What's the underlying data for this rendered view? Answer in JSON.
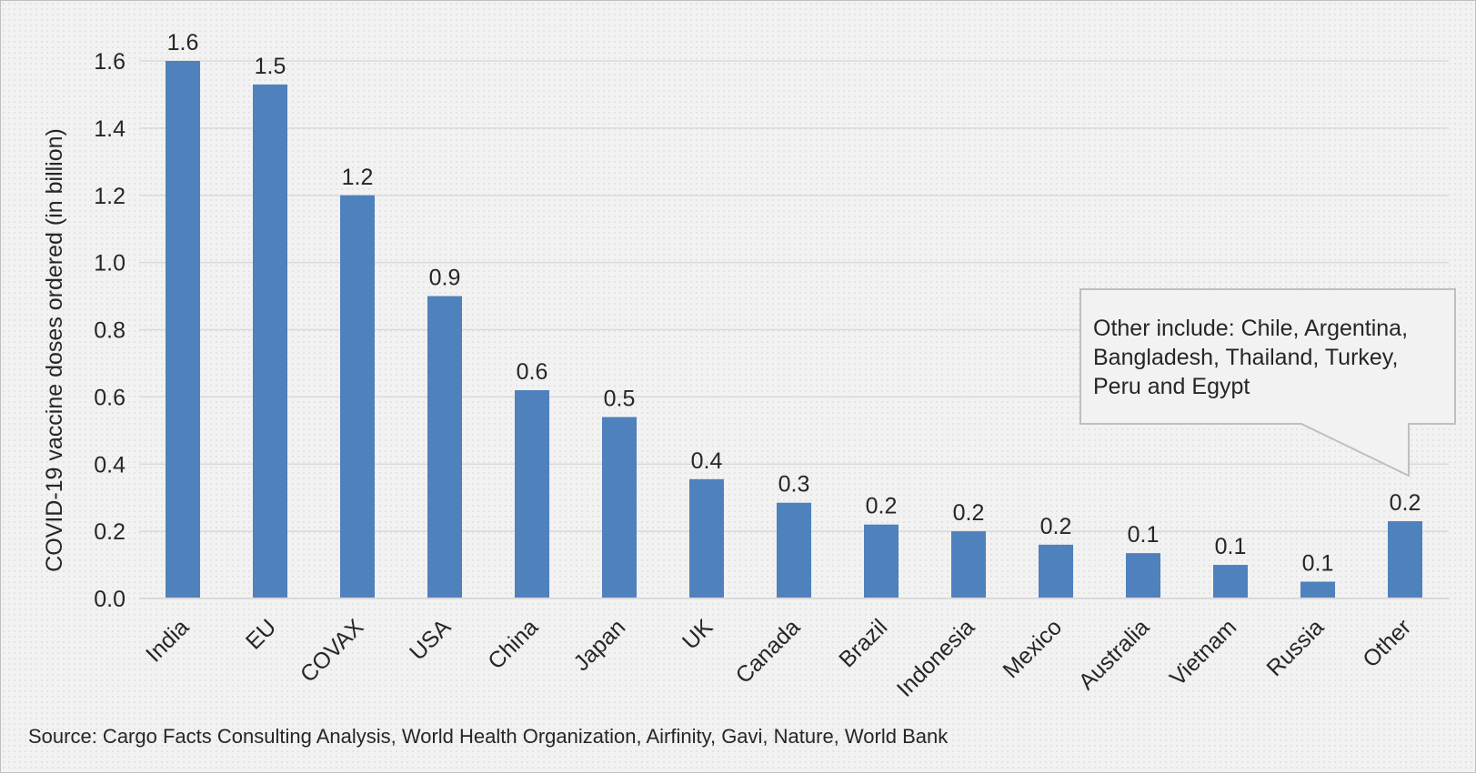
{
  "chart_data": {
    "type": "bar",
    "title": "",
    "xlabel": "",
    "ylabel": "COVID-19 vaccine doses ordered (in billion)",
    "ylim": [
      0,
      1.6
    ],
    "yticks": [
      "0.0",
      "0.2",
      "0.4",
      "0.6",
      "0.8",
      "1.0",
      "1.2",
      "1.4",
      "1.6"
    ],
    "grid": true,
    "bar_color": "#4f81bd",
    "categories": [
      "India",
      "EU",
      "COVAX",
      "USA",
      "China",
      "Japan",
      "UK",
      "Canada",
      "Brazil",
      "Indonesia",
      "Mexico",
      "Australia",
      "Vietnam",
      "Russia",
      "Other"
    ],
    "values": [
      1.6,
      1.53,
      1.2,
      0.9,
      0.62,
      0.54,
      0.355,
      0.285,
      0.22,
      0.2,
      0.16,
      0.135,
      0.1,
      0.05,
      0.23
    ],
    "data_labels": [
      "1.6",
      "1.5",
      "1.2",
      "0.9",
      "0.6",
      "0.5",
      "0.4",
      "0.3",
      "0.2",
      "0.2",
      "0.2",
      "0.1",
      "0.1",
      "0.1",
      "0.2"
    ],
    "annotation": {
      "target": "Other",
      "lines": [
        "Other include: Chile, Argentina,",
        "Bangladesh, Thailand, Turkey,",
        "Peru and Egypt"
      ]
    }
  },
  "source": "Source: Cargo Facts Consulting Analysis, World Health Organization, Airfinity, Gavi, Nature, World Bank"
}
